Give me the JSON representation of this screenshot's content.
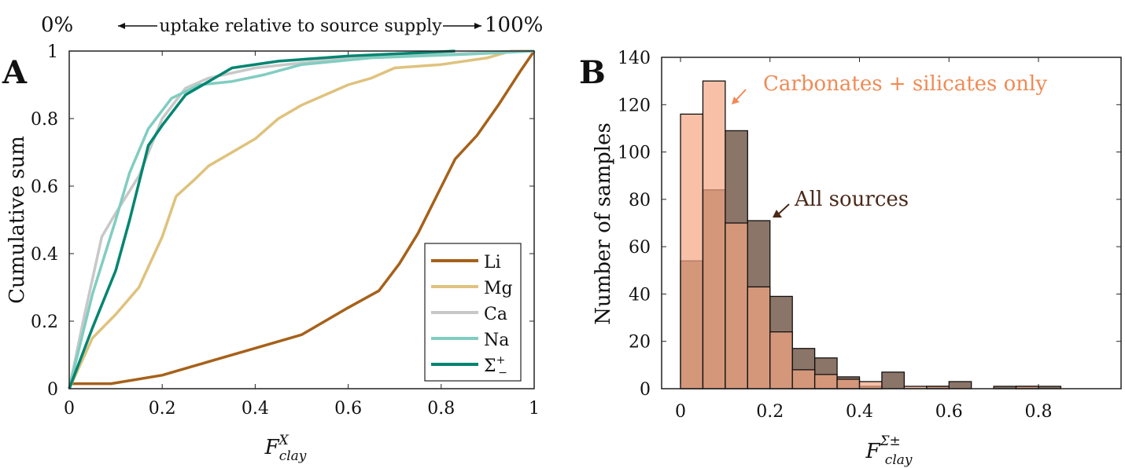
{
  "header": {
    "left": "0%",
    "middle": "uptake relative to source supply",
    "right": "100%"
  },
  "chart_data": [
    {
      "type": "line",
      "panel": "A",
      "ylabel": "Cumulative sum",
      "xlabel_base": "F",
      "xlabel_sup": "X",
      "xlabel_sub": "clay",
      "xlim": [
        0,
        1
      ],
      "ylim": [
        0,
        1
      ],
      "xticks": [
        "0",
        "0.2",
        "0.4",
        "0.6",
        "0.8",
        "1"
      ],
      "yticks": [
        "0",
        "0.2",
        "0.4",
        "0.6",
        "0.8",
        "1"
      ],
      "legend_position": "bottom-right",
      "series": [
        {
          "name": "Li",
          "color": "#a6611a",
          "points": [
            [
              0,
              0.015
            ],
            [
              0.09,
              0.015
            ],
            [
              0.2,
              0.04
            ],
            [
              0.3,
              0.08
            ],
            [
              0.4,
              0.12
            ],
            [
              0.5,
              0.16
            ],
            [
              0.6,
              0.24
            ],
            [
              0.666,
              0.29
            ],
            [
              0.71,
              0.37
            ],
            [
              0.75,
              0.46
            ],
            [
              0.79,
              0.57
            ],
            [
              0.83,
              0.68
            ],
            [
              0.877,
              0.75
            ],
            [
              0.923,
              0.84
            ],
            [
              0.97,
              0.94
            ],
            [
              1,
              1
            ]
          ]
        },
        {
          "name": "Mg",
          "color": "#dfc27d",
          "points": [
            [
              0,
              0
            ],
            [
              0.05,
              0.15
            ],
            [
              0.1,
              0.22
            ],
            [
              0.15,
              0.3
            ],
            [
              0.2,
              0.45
            ],
            [
              0.23,
              0.57
            ],
            [
              0.27,
              0.62
            ],
            [
              0.3,
              0.66
            ],
            [
              0.35,
              0.7
            ],
            [
              0.4,
              0.74
            ],
            [
              0.45,
              0.8
            ],
            [
              0.5,
              0.84
            ],
            [
              0.55,
              0.87
            ],
            [
              0.6,
              0.9
            ],
            [
              0.65,
              0.92
            ],
            [
              0.7,
              0.95
            ],
            [
              0.8,
              0.96
            ],
            [
              0.9,
              0.98
            ],
            [
              0.95,
              1
            ],
            [
              1,
              1
            ]
          ]
        },
        {
          "name": "Ca",
          "color": "#c8c8c8",
          "points": [
            [
              0,
              0
            ],
            [
              0.03,
              0.2
            ],
            [
              0.07,
              0.45
            ],
            [
              0.1,
              0.52
            ],
            [
              0.15,
              0.63
            ],
            [
              0.2,
              0.8
            ],
            [
              0.25,
              0.89
            ],
            [
              0.3,
              0.92
            ],
            [
              0.4,
              0.95
            ],
            [
              0.6,
              0.98
            ],
            [
              0.8,
              0.99
            ],
            [
              0.97,
              1
            ]
          ]
        },
        {
          "name": "Na",
          "color": "#80cdc1",
          "points": [
            [
              0,
              0
            ],
            [
              0.05,
              0.28
            ],
            [
              0.1,
              0.5
            ],
            [
              0.13,
              0.64
            ],
            [
              0.17,
              0.77
            ],
            [
              0.22,
              0.86
            ],
            [
              0.28,
              0.9
            ],
            [
              0.35,
              0.91
            ],
            [
              0.42,
              0.93
            ],
            [
              0.5,
              0.96
            ],
            [
              0.65,
              0.98
            ],
            [
              0.85,
              0.99
            ],
            [
              1,
              1
            ]
          ]
        },
        {
          "name": "Σ",
          "name_sup": "+",
          "name_sub": "−",
          "color": "#018571",
          "points": [
            [
              0,
              0
            ],
            [
              0.05,
              0.18
            ],
            [
              0.1,
              0.35
            ],
            [
              0.13,
              0.5
            ],
            [
              0.17,
              0.72
            ],
            [
              0.2,
              0.78
            ],
            [
              0.25,
              0.87
            ],
            [
              0.3,
              0.91
            ],
            [
              0.35,
              0.95
            ],
            [
              0.45,
              0.97
            ],
            [
              0.6,
              0.985
            ],
            [
              0.83,
              1
            ]
          ]
        }
      ]
    },
    {
      "type": "bar",
      "panel": "B",
      "ylabel": "Number of samples",
      "xlabel_base": "F",
      "xlabel_sup": "Σ±",
      "xlabel_sub": "clay",
      "xlim": [
        -0.04,
        0.88
      ],
      "ylim": [
        0,
        140
      ],
      "xticks": [
        "0",
        "0.2",
        "0.4",
        "0.6",
        "0.8"
      ],
      "yticks": [
        "0",
        "20",
        "40",
        "60",
        "80",
        "100",
        "120",
        "140"
      ],
      "bin_width": 0.05,
      "bin_starts": [
        0,
        0.05,
        0.1,
        0.15,
        0.2,
        0.25,
        0.3,
        0.35,
        0.4,
        0.45,
        0.5,
        0.55,
        0.6,
        0.65,
        0.7,
        0.75,
        0.8
      ],
      "series": [
        {
          "name": "All sources",
          "color": "#5a3a28",
          "values": [
            54,
            84,
            109,
            71,
            39,
            17,
            13,
            5,
            1,
            7,
            0,
            1,
            3,
            0,
            1,
            1,
            1
          ]
        },
        {
          "name": "Carbonates + silicates only",
          "color": "#f4a582",
          "values": [
            116,
            130,
            70,
            43,
            24,
            8,
            6,
            4,
            3,
            0,
            1,
            1,
            0,
            0,
            0,
            1,
            0
          ]
        }
      ]
    }
  ]
}
